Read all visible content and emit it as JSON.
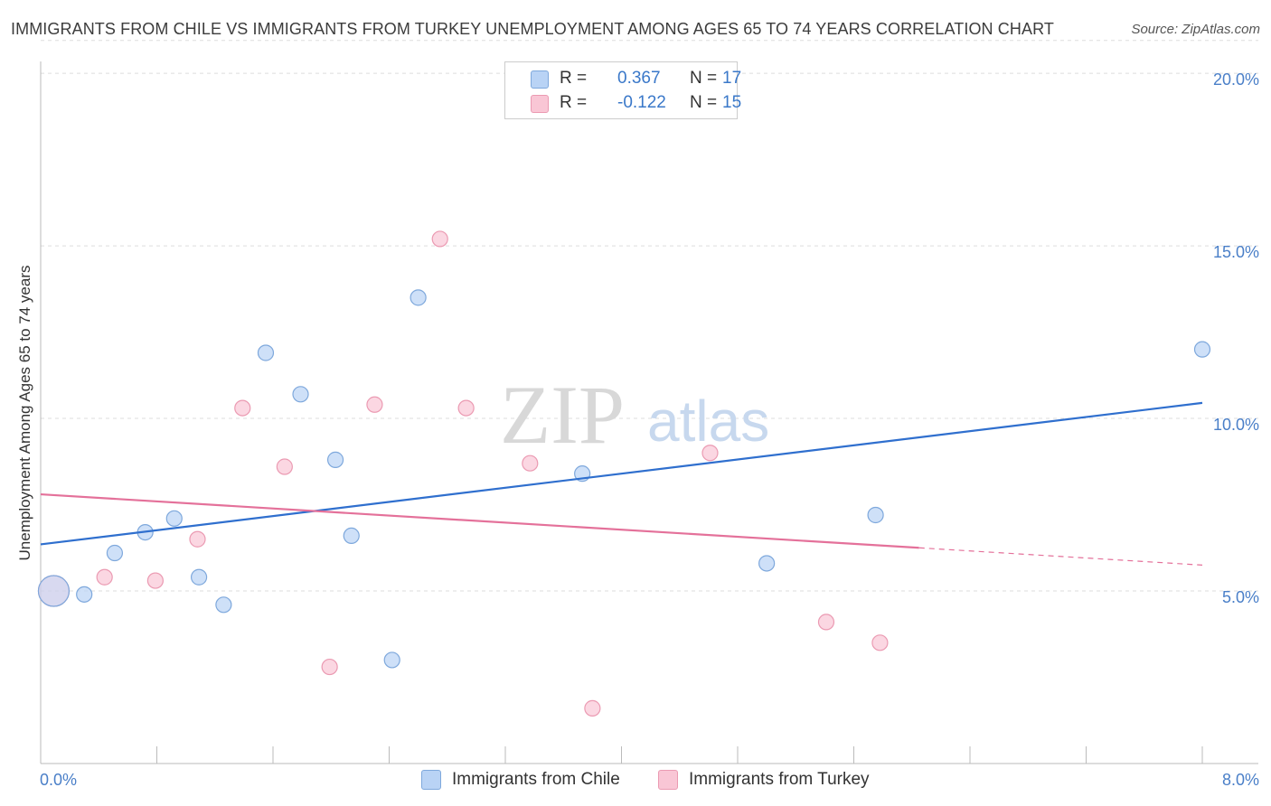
{
  "title": "IMMIGRANTS FROM CHILE VS IMMIGRANTS FROM TURKEY UNEMPLOYMENT AMONG AGES 65 TO 74 YEARS CORRELATION CHART",
  "source": "Source: ZipAtlas.com",
  "watermark": {
    "zip": "ZIP",
    "atlas": "atlas"
  },
  "legend": {
    "rows": [
      {
        "r_label": "R =",
        "r_value": "0.367",
        "n_label": "N =",
        "n_value": "17",
        "color": "#b9d3f5"
      },
      {
        "r_label": "R =",
        "r_value": "-0.122",
        "n_label": "N =",
        "n_value": "15",
        "color": "#f9c6d5"
      }
    ]
  },
  "chart_data": {
    "type": "scatter",
    "title": "IMMIGRANTS FROM CHILE VS IMMIGRANTS FROM TURKEY UNEMPLOYMENT AMONG AGES 65 TO 74 YEARS CORRELATION CHART",
    "xlabel": "",
    "ylabel": "Unemployment Among Ages 65 to 74 years",
    "xlim": [
      0,
      8.4
    ],
    "ylim": [
      0,
      20.5
    ],
    "x_tick_labels": [
      "0.0%",
      "8.0%"
    ],
    "y_ticks": [
      5,
      10,
      15,
      20
    ],
    "y_tick_labels": [
      "5.0%",
      "10.0%",
      "15.0%",
      "20.0%"
    ],
    "grid": true,
    "series": [
      {
        "name": "Immigrants from Chile",
        "color": "#b9d3f5",
        "stroke": "#7ea8dc",
        "line_color": "#2f6fce",
        "points": [
          {
            "x": 0.09,
            "y": 5.0,
            "big": true
          },
          {
            "x": 0.3,
            "y": 4.9
          },
          {
            "x": 0.51,
            "y": 6.1
          },
          {
            "x": 0.72,
            "y": 6.7
          },
          {
            "x": 0.92,
            "y": 7.1
          },
          {
            "x": 1.09,
            "y": 5.4
          },
          {
            "x": 1.26,
            "y": 4.6
          },
          {
            "x": 1.55,
            "y": 11.9
          },
          {
            "x": 1.79,
            "y": 10.7
          },
          {
            "x": 2.03,
            "y": 8.8
          },
          {
            "x": 2.14,
            "y": 6.6
          },
          {
            "x": 2.42,
            "y": 3.0
          },
          {
            "x": 2.6,
            "y": 13.5
          },
          {
            "x": 3.73,
            "y": 8.4
          },
          {
            "x": 5.0,
            "y": 5.8
          },
          {
            "x": 5.75,
            "y": 7.2
          },
          {
            "x": 8.0,
            "y": 12.0
          }
        ],
        "trend": {
          "x0": 0,
          "y0": 6.35,
          "x1": 8.0,
          "y1": 10.45,
          "dashed_to_x": null
        }
      },
      {
        "name": "Immigrants from Turkey",
        "color": "#f9c6d5",
        "stroke": "#eb9ab2",
        "line_color": "#e4719a",
        "points": [
          {
            "x": 0.09,
            "y": 5.0,
            "big": true
          },
          {
            "x": 0.44,
            "y": 5.4
          },
          {
            "x": 0.79,
            "y": 5.3
          },
          {
            "x": 1.08,
            "y": 6.5
          },
          {
            "x": 1.39,
            "y": 10.3
          },
          {
            "x": 1.68,
            "y": 8.6
          },
          {
            "x": 1.99,
            "y": 2.8
          },
          {
            "x": 2.3,
            "y": 10.4
          },
          {
            "x": 2.75,
            "y": 15.2
          },
          {
            "x": 2.93,
            "y": 10.3
          },
          {
            "x": 3.37,
            "y": 8.7
          },
          {
            "x": 3.8,
            "y": 1.6
          },
          {
            "x": 4.61,
            "y": 9.0
          },
          {
            "x": 5.41,
            "y": 4.1
          },
          {
            "x": 5.78,
            "y": 3.5
          }
        ],
        "trend": {
          "x0": 0,
          "y0": 7.8,
          "x1": 6.05,
          "y1": 6.25,
          "dashed_to_x": 8.0,
          "dashed_to_y": 5.75
        }
      }
    ]
  }
}
